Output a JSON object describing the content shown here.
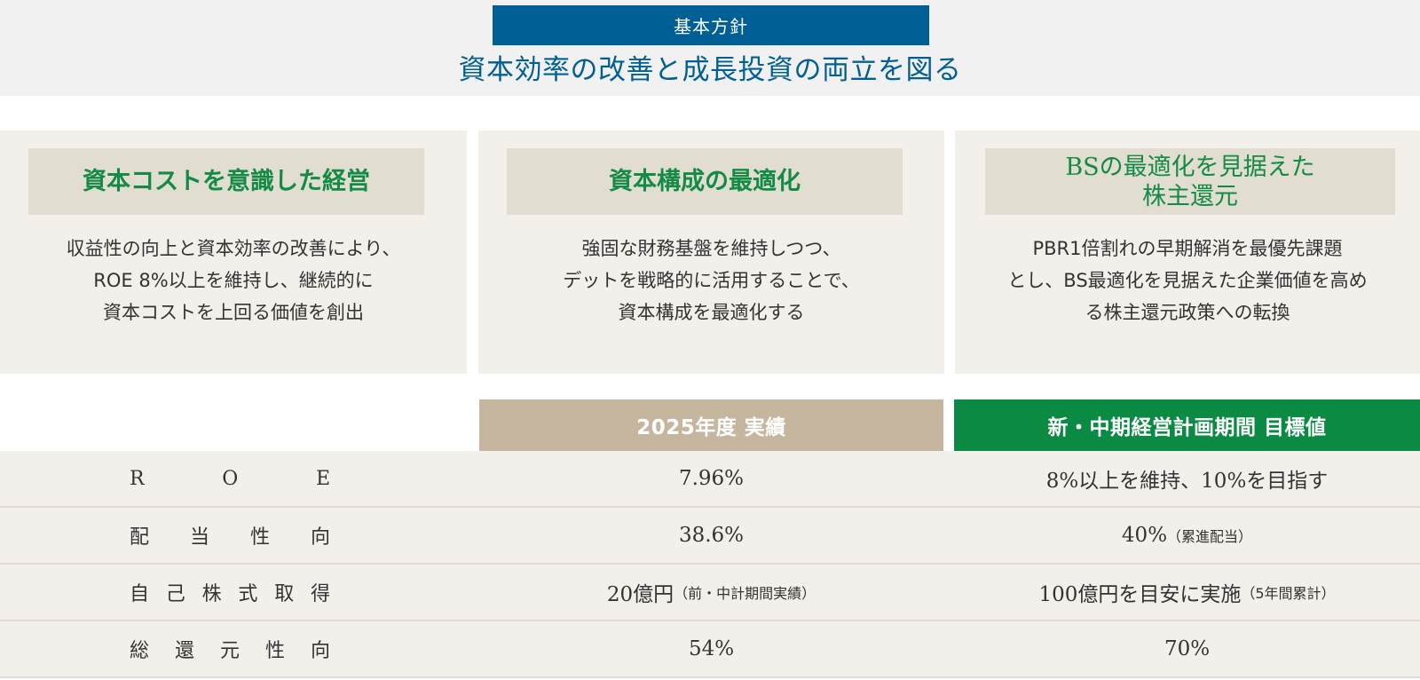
{
  "header": {
    "policy_label": "基本方針",
    "policy_title": "資本効率の改善と成長投資の両立を図る"
  },
  "cards": [
    {
      "title": "資本コストを意識した経営",
      "body": [
        "収益性の向上と資本効率の改善により、",
        "ROE 8%以上を維持し、継続的に",
        "資本コストを上回る価値を創出"
      ]
    },
    {
      "title": "資本構成の最適化",
      "body": [
        "強固な財務基盤を維持しつつ、",
        "デットを戦略的に活用することで、",
        "資本構成を最適化する"
      ]
    },
    {
      "title_lines": [
        "BSの最適化を見据えた",
        "株主還元"
      ],
      "body": [
        "PBR1倍割れの早期解消を最優先課題",
        "とし、BS最適化を見据えた企業価値を高め",
        "る株主還元政策への転換"
      ]
    }
  ],
  "table": {
    "headers": {
      "actual": "2025年度 実績",
      "target": "新・中期経営計画期間 目標値"
    },
    "rows": [
      {
        "label_chars": [
          "R",
          "O",
          "E"
        ],
        "actual": "7.96%",
        "actual_note": "",
        "target": "8%以上を維持、10%を目指す",
        "target_note": ""
      },
      {
        "label_chars": [
          "配",
          "当",
          "性",
          "向"
        ],
        "actual": "38.6%",
        "actual_note": "",
        "target": "40%",
        "target_note": "（累進配当）"
      },
      {
        "label_chars": [
          "自",
          "己",
          "株",
          "式",
          "取",
          "得"
        ],
        "actual": "20億円",
        "actual_note": "（前・中計期間実績）",
        "target": "100億円を目安に実施",
        "target_note": "（5年間累計）"
      },
      {
        "label_chars": [
          "総",
          "還",
          "元",
          "性",
          "向"
        ],
        "actual": "54%",
        "actual_note": "",
        "target": "70%",
        "target_note": ""
      }
    ]
  },
  "colors": {
    "policy_blue": "#005f94",
    "title_green": "#148b45",
    "header_tan": "#c6b69f",
    "header_green": "#0b8a43",
    "card_bg": "#f3f0eb",
    "card_title_bg": "#e2ddd1"
  }
}
